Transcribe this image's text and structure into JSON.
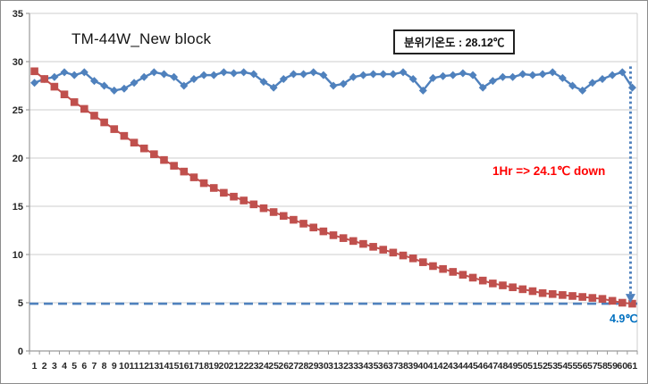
{
  "window": {
    "background": "#FFFFFF",
    "border_color": "#8C8C8C",
    "gridline_color": "#CDCDCD",
    "axis_color": "#9A9A9A"
  },
  "chart_data": {
    "type": "line",
    "title": "TM-44W_New block",
    "xlabel": "",
    "ylabel": "",
    "ylim": [
      0,
      35
    ],
    "y_ticks": [
      0,
      5,
      10,
      15,
      20,
      25,
      30,
      35
    ],
    "x_categories": [
      1,
      2,
      3,
      4,
      5,
      6,
      7,
      8,
      9,
      10,
      11,
      12,
      13,
      14,
      15,
      16,
      17,
      18,
      19,
      20,
      21,
      22,
      23,
      24,
      25,
      26,
      27,
      28,
      29,
      30,
      31,
      32,
      33,
      34,
      35,
      36,
      37,
      38,
      39,
      40,
      41,
      42,
      43,
      44,
      45,
      46,
      47,
      48,
      49,
      50,
      51,
      52,
      53,
      54,
      55,
      56,
      57,
      58,
      59,
      60,
      61
    ],
    "grid": true,
    "legend": "none",
    "series": [
      {
        "name": "blue",
        "color": "#4F81BD",
        "marker": "diamond",
        "values": [
          27.8,
          28.2,
          28.4,
          28.9,
          28.6,
          28.9,
          28.0,
          27.5,
          27.0,
          27.2,
          27.8,
          28.4,
          28.9,
          28.7,
          28.4,
          27.5,
          28.2,
          28.6,
          28.6,
          28.9,
          28.8,
          28.9,
          28.7,
          27.9,
          27.3,
          28.2,
          28.7,
          28.7,
          28.9,
          28.6,
          27.5,
          27.7,
          28.4,
          28.6,
          28.7,
          28.7,
          28.7,
          28.9,
          28.2,
          27.0,
          28.3,
          28.5,
          28.6,
          28.8,
          28.6,
          27.3,
          28.0,
          28.4,
          28.4,
          28.7,
          28.6,
          28.7,
          28.9,
          28.3,
          27.5,
          27.0,
          27.8,
          28.2,
          28.6,
          28.9,
          27.3
        ]
      },
      {
        "name": "red",
        "color": "#C0504D",
        "marker": "square",
        "values": [
          29.0,
          28.2,
          27.4,
          26.6,
          25.8,
          25.1,
          24.4,
          23.7,
          23.0,
          22.3,
          21.6,
          21.0,
          20.4,
          19.8,
          19.2,
          18.6,
          18.0,
          17.4,
          16.9,
          16.4,
          16.0,
          15.6,
          15.2,
          14.8,
          14.4,
          14.0,
          13.6,
          13.2,
          12.8,
          12.4,
          12.0,
          11.7,
          11.4,
          11.1,
          10.8,
          10.5,
          10.2,
          9.9,
          9.6,
          9.2,
          8.8,
          8.5,
          8.2,
          7.9,
          7.6,
          7.3,
          7.0,
          6.8,
          6.6,
          6.4,
          6.2,
          6.0,
          5.9,
          5.8,
          5.7,
          5.6,
          5.5,
          5.4,
          5.2,
          5.0,
          4.9
        ]
      }
    ],
    "reference_lines": [
      {
        "type": "horizontal-dashed",
        "value": 4.9,
        "color": "#4F81BD"
      },
      {
        "type": "vertical-dotted",
        "at_category": 61,
        "from_value": 29.5,
        "to_value": 4.9,
        "arrow": "down",
        "color": "#4F81BD"
      }
    ],
    "annotations": {
      "ambient_box_label": "분위기온도 : 28.12℃",
      "drop_note": "1Hr => 24.1℃ down",
      "drop_note_color": "#FF0000",
      "end_value_label": "4.9℃",
      "end_value_color": "#0070C0"
    }
  }
}
